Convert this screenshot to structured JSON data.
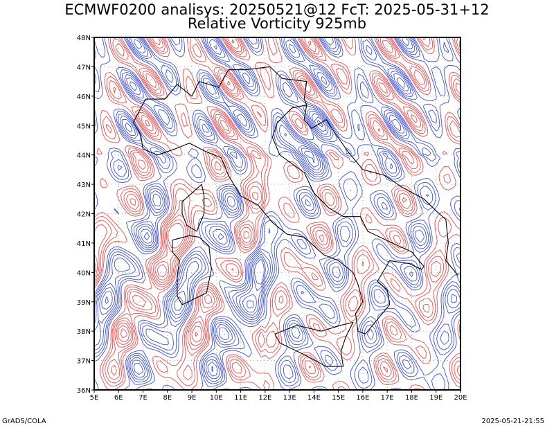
{
  "title_line1": "ECMWF0200 analisys: 20250521@12 FcT: 2025-05-31+12",
  "title_line2": "Relative Vorticity 925mb",
  "footer_left": "GrADS/COLA",
  "footer_right": "2025-05-21-21:55",
  "map": {
    "lon_range": [
      5,
      20
    ],
    "lat_range": [
      36,
      48
    ],
    "lon_labels": [
      "5E",
      "6E",
      "7E",
      "8E",
      "9E",
      "10E",
      "11E",
      "12E",
      "13E",
      "14E",
      "15E",
      "16E",
      "17E",
      "18E",
      "19E",
      "20E"
    ],
    "lat_labels": [
      "48N",
      "47N",
      "46N",
      "45N",
      "44N",
      "43N",
      "42N",
      "41N",
      "40N",
      "39N",
      "38N",
      "37N",
      "36N"
    ],
    "colors": {
      "positive": "#f04a4a",
      "negative": "#3a4ee8",
      "border": "#000000",
      "grid": "#999999"
    }
  }
}
